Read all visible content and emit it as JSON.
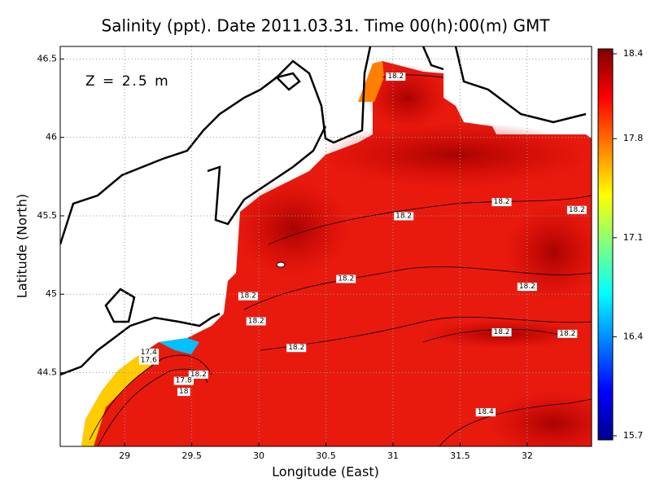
{
  "chart_data": {
    "type": "contour-map",
    "title": "Salinity (ppt). Date 2011.03.31. Time 00(h):00(m) GMT",
    "x_label": "Longitude (East)",
    "y_label": "Latitude (North)",
    "annotation": "Z = 2.5 m",
    "xlim": [
      28.52,
      32.48
    ],
    "ylim": [
      44.03,
      46.58
    ],
    "xticks": [
      29,
      29.5,
      30,
      30.5,
      31,
      31.5,
      32
    ],
    "yticks": [
      44.5,
      45,
      45.5,
      46,
      46.5
    ],
    "grid": true,
    "colorbar": {
      "clim": [
        15.7,
        18.4
      ],
      "ticks": [
        18.4,
        17.8,
        17.1,
        16.4,
        15.7
      ],
      "colors": [
        "#00008f",
        "#0000ff",
        "#0080ff",
        "#00ffff",
        "#80ff80",
        "#ffff00",
        "#ff8000",
        "#ff0000",
        "#800000"
      ]
    },
    "contour_labels": [
      {
        "x": 31.02,
        "y": 46.39,
        "value": 18.2
      },
      {
        "x": 31.81,
        "y": 45.59,
        "value": 18.2
      },
      {
        "x": 32.37,
        "y": 45.54,
        "value": 18.2
      },
      {
        "x": 31.08,
        "y": 45.5,
        "value": 18.2
      },
      {
        "x": 30.65,
        "y": 45.1,
        "value": 18.2
      },
      {
        "x": 32.0,
        "y": 45.05,
        "value": 18.2
      },
      {
        "x": 29.92,
        "y": 44.99,
        "value": 18.2
      },
      {
        "x": 29.98,
        "y": 44.83,
        "value": 18.2
      },
      {
        "x": 30.28,
        "y": 44.66,
        "value": 18.2
      },
      {
        "x": 31.81,
        "y": 44.76,
        "value": 18.2
      },
      {
        "x": 32.3,
        "y": 44.75,
        "value": 18.2
      },
      {
        "x": 29.55,
        "y": 44.49,
        "value": 18.2
      },
      {
        "x": 31.69,
        "y": 44.25,
        "value": 18.4
      },
      {
        "x": 29.18,
        "y": 44.63,
        "value": 17.4
      },
      {
        "x": 29.18,
        "y": 44.58,
        "value": 17.6
      },
      {
        "x": 29.44,
        "y": 44.45,
        "value": 17.8
      },
      {
        "x": 29.44,
        "y": 44.38,
        "value": 18
      }
    ]
  }
}
